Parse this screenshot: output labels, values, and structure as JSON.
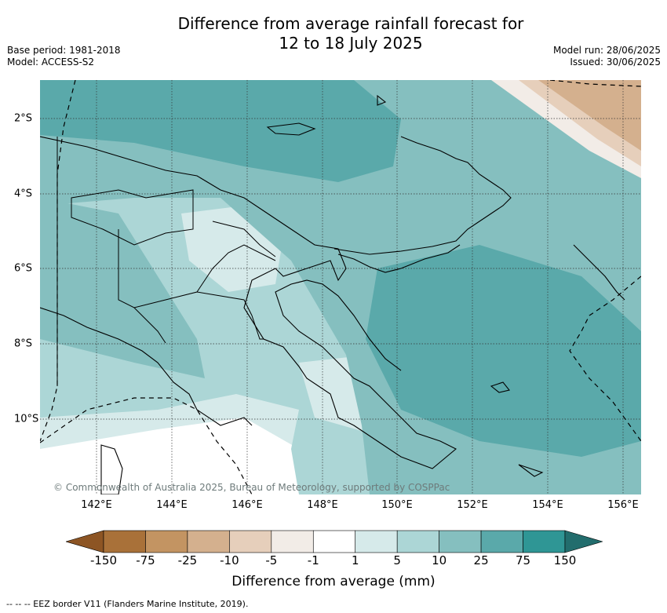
{
  "title_line1": "Difference from average rainfall forecast for",
  "title_line2": "12 to 18 July 2025",
  "base_period": "Base period: 1981-2018",
  "model": "Model: ACCESS-S2",
  "model_run": "Model run: 28/06/2025",
  "issued": "Issued: 30/06/2025",
  "copyright": "© Commonwealth of Australia 2025, Bureau of Meteorology, supported by COSPPac",
  "x_ticks": [
    "142°E",
    "144°E",
    "146°E",
    "148°E",
    "150°E",
    "152°E",
    "154°E",
    "156°E"
  ],
  "y_ticks": [
    "2°S",
    "4°S",
    "6°S",
    "8°S",
    "10°S"
  ],
  "colorbar": {
    "title": "Difference from average (mm)",
    "labels": [
      "-150",
      "-75",
      "-25",
      "-10",
      "-5",
      "-1",
      "1",
      "5",
      "10",
      "25",
      "75",
      "150"
    ],
    "colors": [
      "#8d5524",
      "#a97139",
      "#c39462",
      "#d4b08e",
      "#e6cfbb",
      "#f2ece7",
      "#ffffff",
      "#d6eaea",
      "#acd6d6",
      "#85bfbf",
      "#5aa9aa",
      "#2f9695",
      "#226d6d"
    ]
  },
  "footnote": "--  --  -- EEZ border V11 (Flanders Marine Institute, 2019).",
  "colors": {
    "level_1_5": "#d6eaea",
    "level_5_10": "#acd6d6",
    "level_10_25": "#85bfbf",
    "level_25_75": "#5aa9aa",
    "level_neg": "#d4b08e"
  }
}
